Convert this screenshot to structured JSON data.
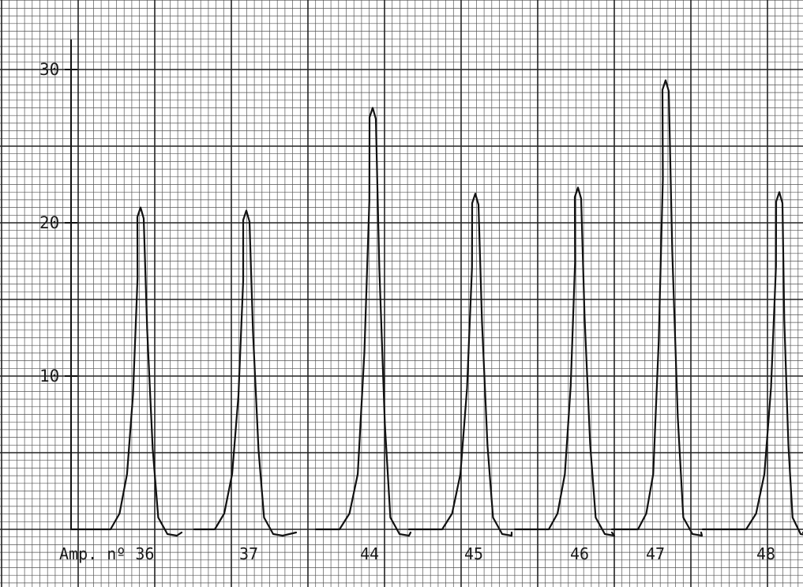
{
  "chart_data": {
    "type": "line",
    "title": "",
    "xlabel": "",
    "ylabel": "",
    "ylim": [
      0,
      32
    ],
    "grid": true,
    "y_ticks": [
      {
        "value": 10,
        "label": "10"
      },
      {
        "value": 20,
        "label": "20"
      },
      {
        "value": 30,
        "label": "30"
      }
    ],
    "peaks": [
      {
        "label": "Amp. nº 36",
        "height": 21.0
      },
      {
        "label": "37",
        "height": 20.8
      },
      {
        "label": "44",
        "height": 27.5
      },
      {
        "label": "45",
        "height": 21.9
      },
      {
        "label": "46",
        "height": 22.3
      },
      {
        "label": "47",
        "height": 29.3
      },
      {
        "label": "48",
        "height": 22.0
      }
    ]
  },
  "colors": {
    "background": "#ffffff",
    "grid_minor": "#555555",
    "grid_major": "#222222",
    "trace": "#111111"
  }
}
